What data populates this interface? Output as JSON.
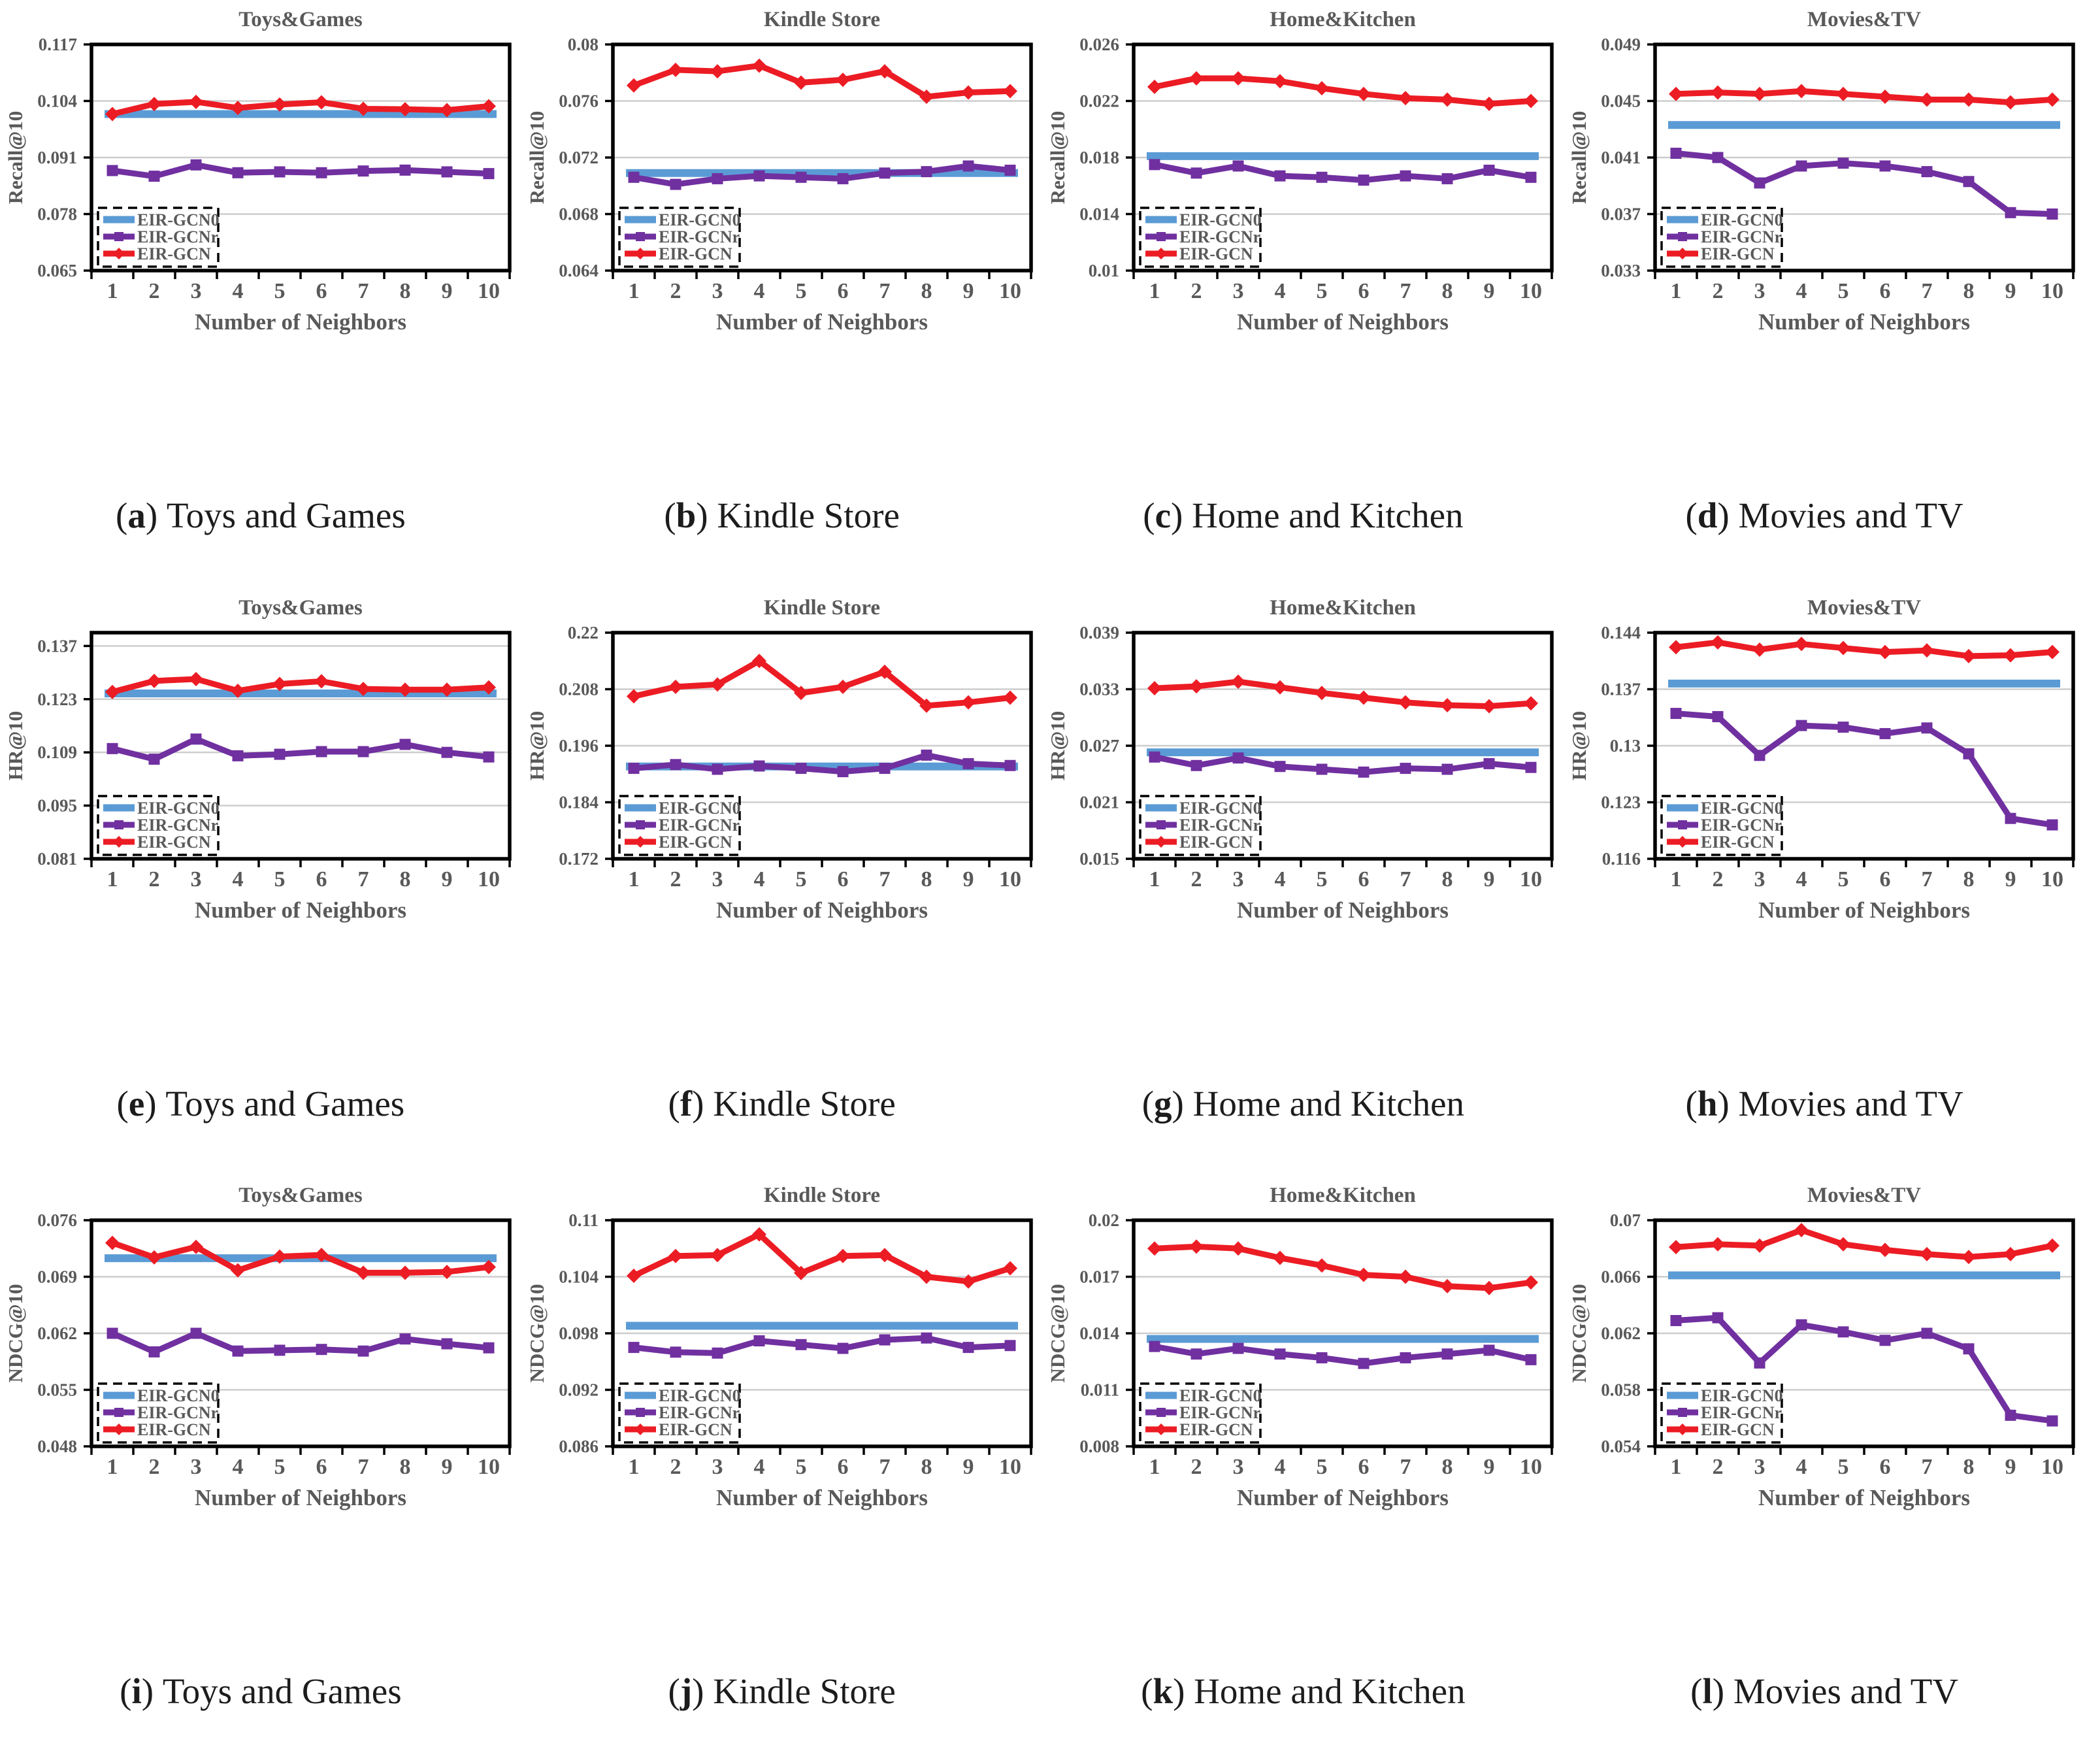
{
  "page": {
    "bg": "#ffffff"
  },
  "colors": {
    "gcn0": "#5B9BD5",
    "gcnr": "#7030A0",
    "gcn": "#EC1C24",
    "axis_text": "#595959",
    "grid": "#CDCDCD",
    "frame": "#000000",
    "plot_bg": "#ffffff",
    "caption_text": "#1c1c1c"
  },
  "xlabel": "Number of Neighbors",
  "x_ticks": [
    "1",
    "2",
    "3",
    "4",
    "5",
    "6",
    "7",
    "8",
    "9",
    "10"
  ],
  "legend": {
    "items": [
      {
        "key": "gcn0",
        "label": "EIR-GCN0",
        "marker": "none"
      },
      {
        "key": "gcnr",
        "label": "EIR-GCNr",
        "marker": "square"
      },
      {
        "key": "gcn",
        "label": "EIR-GCN",
        "marker": "diamond"
      }
    ]
  },
  "caption_paren_open": "(",
  "caption_paren_close": ") ",
  "chart_data": [
    {
      "id": "a",
      "type": "line",
      "title": "Toys&Games",
      "ylabel": "Recall@10",
      "caption_letter": "a",
      "caption_title": "Toys and Games",
      "yticks": [
        "0.065",
        "0.078",
        "0.091",
        "0.104",
        "0.117"
      ],
      "ylim": [
        0.065,
        0.117
      ],
      "series": {
        "gcn0": 0.101,
        "gcnr": [
          0.088,
          0.0867,
          0.0893,
          0.0875,
          0.0877,
          0.0875,
          0.0879,
          0.0881,
          0.0877,
          0.0873
        ],
        "gcn": [
          0.101,
          0.1033,
          0.1038,
          0.1024,
          0.1032,
          0.1037,
          0.1022,
          0.1021,
          0.1019,
          0.1028
        ]
      }
    },
    {
      "id": "b",
      "type": "line",
      "title": "Kindle Store",
      "ylabel": "Recall@10",
      "caption_letter": "b",
      "caption_title": "Kindle Store",
      "yticks": [
        "0.064",
        "0.068",
        "0.072",
        "0.076",
        "0.08"
      ],
      "ylim": [
        0.064,
        0.08
      ],
      "series": {
        "gcn0": 0.0709,
        "gcnr": [
          0.0706,
          0.0701,
          0.0705,
          0.0707,
          0.0706,
          0.0705,
          0.0709,
          0.071,
          0.0714,
          0.0711
        ],
        "gcn": [
          0.0771,
          0.0782,
          0.0781,
          0.0785,
          0.0773,
          0.0775,
          0.0781,
          0.0763,
          0.0766,
          0.0767
        ]
      }
    },
    {
      "id": "c",
      "type": "line",
      "title": "Home&Kitchen",
      "ylabel": "Recall@10",
      "caption_letter": "c",
      "caption_title": "Home and Kitchen",
      "yticks": [
        "0.01",
        "0.014",
        "0.018",
        "0.022",
        "0.026"
      ],
      "ylim": [
        0.01,
        0.026
      ],
      "series": {
        "gcn0": 0.0181,
        "gcnr": [
          0.0175,
          0.0169,
          0.0174,
          0.0167,
          0.0166,
          0.0164,
          0.0167,
          0.0165,
          0.0171,
          0.0166
        ],
        "gcn": [
          0.023,
          0.0236,
          0.0236,
          0.0234,
          0.0229,
          0.0225,
          0.0222,
          0.0221,
          0.0218,
          0.022
        ]
      }
    },
    {
      "id": "d",
      "type": "line",
      "title": "Movies&TV",
      "ylabel": "Recall@10",
      "caption_letter": "d",
      "caption_title": "Movies and TV",
      "yticks": [
        "0.033",
        "0.037",
        "0.041",
        "0.045",
        "0.049"
      ],
      "ylim": [
        0.033,
        0.049
      ],
      "series": {
        "gcn0": 0.0433,
        "gcnr": [
          0.0413,
          0.041,
          0.0392,
          0.0404,
          0.0406,
          0.0404,
          0.04,
          0.0393,
          0.0371,
          0.037
        ],
        "gcn": [
          0.0455,
          0.0456,
          0.0455,
          0.0457,
          0.0455,
          0.0453,
          0.0451,
          0.0451,
          0.0449,
          0.0451
        ]
      }
    },
    {
      "id": "e",
      "type": "line",
      "title": "Toys&Games",
      "ylabel": "HR@10",
      "caption_letter": "e",
      "caption_title": "Toys and Games",
      "yticks": [
        "0.081",
        "0.095",
        "0.109",
        "0.123",
        "0.137"
      ],
      "ylim": [
        0.081,
        0.1405
      ],
      "series": {
        "gcn0": 0.1245,
        "gcnr": [
          0.11,
          0.1072,
          0.1125,
          0.1081,
          0.1085,
          0.1092,
          0.1092,
          0.1111,
          0.109,
          0.1078
        ],
        "gcn": [
          0.1249,
          0.1278,
          0.1283,
          0.1252,
          0.127,
          0.1277,
          0.1257,
          0.1255,
          0.1255,
          0.1261
        ]
      }
    },
    {
      "id": "f",
      "type": "line",
      "title": "Kindle Store",
      "ylabel": "HR@10",
      "caption_letter": "f",
      "caption_title": "Kindle Store",
      "yticks": [
        "0.172",
        "0.184",
        "0.196",
        "0.208",
        "0.22"
      ],
      "ylim": [
        0.172,
        0.22
      ],
      "series": {
        "gcn0": 0.1916,
        "gcnr": [
          0.1912,
          0.192,
          0.191,
          0.1917,
          0.1912,
          0.1905,
          0.1912,
          0.194,
          0.1922,
          0.1918
        ],
        "gcn": [
          0.2065,
          0.2085,
          0.209,
          0.214,
          0.2072,
          0.2085,
          0.2117,
          0.2045,
          0.2052,
          0.2062
        ]
      }
    },
    {
      "id": "g",
      "type": "line",
      "title": "Home&Kitchen",
      "ylabel": "HR@10",
      "caption_letter": "g",
      "caption_title": "Home and Kitchen",
      "yticks": [
        "0.015",
        "0.021",
        "0.027",
        "0.033",
        "0.039"
      ],
      "ylim": [
        0.015,
        0.039
      ],
      "series": {
        "gcn0": 0.0263,
        "gcnr": [
          0.0258,
          0.0249,
          0.0257,
          0.0248,
          0.0245,
          0.0242,
          0.0246,
          0.0245,
          0.0251,
          0.0247
        ],
        "gcn": [
          0.0331,
          0.0333,
          0.0338,
          0.0332,
          0.0326,
          0.0321,
          0.0316,
          0.0313,
          0.0312,
          0.0315
        ]
      }
    },
    {
      "id": "h",
      "type": "line",
      "title": "Movies&TV",
      "ylabel": "HR@10",
      "caption_letter": "h",
      "caption_title": "Movies and TV",
      "yticks": [
        "0.116",
        "0.123",
        "0.13",
        "0.137",
        "0.144"
      ],
      "ylim": [
        0.116,
        0.144
      ],
      "series": {
        "gcn0": 0.1377,
        "gcnr": [
          0.134,
          0.1336,
          0.1288,
          0.1325,
          0.1323,
          0.1315,
          0.1322,
          0.129,
          0.121,
          0.1202
        ],
        "gcn": [
          0.1422,
          0.1428,
          0.1419,
          0.1426,
          0.1421,
          0.1416,
          0.1418,
          0.1411,
          0.1412,
          0.1416
        ]
      }
    },
    {
      "id": "i",
      "type": "line",
      "title": "Toys&Games",
      "ylabel": "NDCG@10",
      "caption_letter": "i",
      "caption_title": "Toys and Games",
      "yticks": [
        "0.048",
        "0.055",
        "0.062",
        "0.069",
        "0.076"
      ],
      "ylim": [
        0.048,
        0.076
      ],
      "series": {
        "gcn0": 0.0713,
        "gcnr": [
          0.062,
          0.0597,
          0.062,
          0.0598,
          0.0599,
          0.06,
          0.0598,
          0.0613,
          0.0607,
          0.0602
        ],
        "gcn": [
          0.0732,
          0.0714,
          0.0727,
          0.0698,
          0.0715,
          0.0717,
          0.0695,
          0.0695,
          0.0696,
          0.0702
        ]
      }
    },
    {
      "id": "j",
      "type": "line",
      "title": "Kindle Store",
      "ylabel": "NDCG@10",
      "caption_letter": "j",
      "caption_title": "Kindle Store",
      "yticks": [
        "0.086",
        "0.092",
        "0.098",
        "0.104",
        "0.11"
      ],
      "ylim": [
        0.086,
        0.11
      ],
      "series": {
        "gcn0": 0.0988,
        "gcnr": [
          0.0965,
          0.096,
          0.0959,
          0.0972,
          0.0968,
          0.0964,
          0.0973,
          0.0975,
          0.0965,
          0.0967
        ],
        "gcn": [
          0.1041,
          0.1062,
          0.1063,
          0.1085,
          0.1044,
          0.1062,
          0.1063,
          0.104,
          0.1035,
          0.1049
        ]
      }
    },
    {
      "id": "k",
      "type": "line",
      "title": "Home&Kitchen",
      "ylabel": "NDCG@10",
      "caption_letter": "k",
      "caption_title": "Home and Kitchen",
      "yticks": [
        "0.008",
        "0.011",
        "0.014",
        "0.017",
        "0.02"
      ],
      "ylim": [
        0.008,
        0.02
      ],
      "series": {
        "gcn0": 0.0137,
        "gcnr": [
          0.0133,
          0.0129,
          0.0132,
          0.0129,
          0.0127,
          0.0124,
          0.0127,
          0.0129,
          0.0131,
          0.0126
        ],
        "gcn": [
          0.0185,
          0.0186,
          0.0185,
          0.018,
          0.0176,
          0.0171,
          0.017,
          0.0165,
          0.0164,
          0.0167
        ]
      }
    },
    {
      "id": "l",
      "type": "line",
      "title": "Movies&TV",
      "ylabel": "NDCG@10",
      "caption_letter": "l",
      "caption_title": "Movies and TV",
      "yticks": [
        "0.054",
        "0.058",
        "0.062",
        "0.066",
        "0.07"
      ],
      "ylim": [
        0.054,
        0.07
      ],
      "series": {
        "gcn0": 0.0661,
        "gcnr": [
          0.0629,
          0.0631,
          0.0599,
          0.0626,
          0.0621,
          0.0615,
          0.062,
          0.0609,
          0.0562,
          0.0558
        ],
        "gcn": [
          0.0681,
          0.0683,
          0.0682,
          0.0693,
          0.0683,
          0.0679,
          0.0676,
          0.0674,
          0.0676,
          0.0682
        ]
      }
    }
  ]
}
